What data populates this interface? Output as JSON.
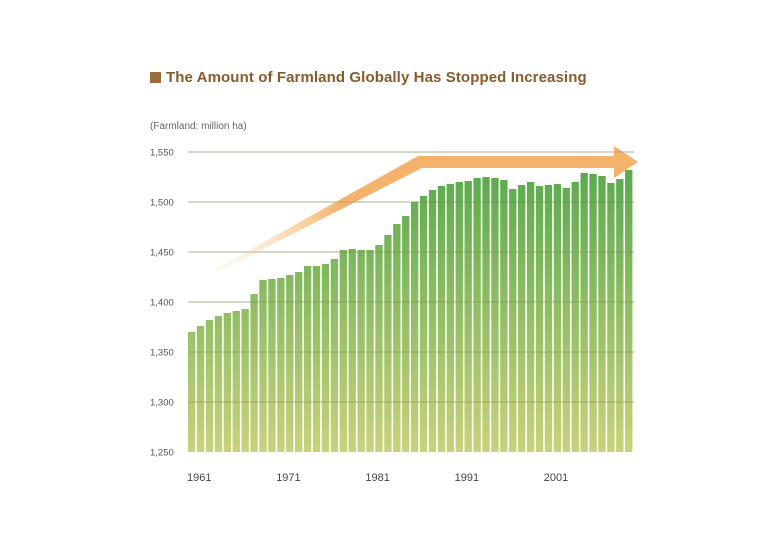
{
  "title": "The Amount of Farmland Globally Has Stopped Increasing",
  "colors": {
    "title": "#8a5a2a",
    "marker": "#9a6e3c",
    "bar_top": "#52a84a",
    "bar_bottom": "#c9d27a",
    "arrow": "#f4b26a"
  },
  "chart_data": {
    "type": "bar",
    "ylabel": "(Farmland: million ha)",
    "xlabel": "",
    "ylim": [
      1250,
      1550
    ],
    "yticks": [
      "1,250",
      "1,300",
      "1,350",
      "1,400",
      "1,450",
      "1,500",
      "1,550"
    ],
    "yticks_values": [
      1250,
      1300,
      1350,
      1400,
      1450,
      1500,
      1550
    ],
    "xticks": [
      "1961",
      "1971",
      "1981",
      "1991",
      "2001"
    ],
    "grid": true,
    "legend": "none",
    "annotation": "upward arrow flattening to horizontal",
    "categories": [
      1961,
      1962,
      1963,
      1964,
      1965,
      1966,
      1967,
      1968,
      1969,
      1970,
      1971,
      1972,
      1973,
      1974,
      1975,
      1976,
      1977,
      1978,
      1979,
      1980,
      1981,
      1982,
      1983,
      1984,
      1985,
      1986,
      1987,
      1988,
      1989,
      1990,
      1991,
      1992,
      1993,
      1994,
      1995,
      1996,
      1997,
      1998,
      1999,
      2000,
      2001,
      2002,
      2003,
      2004,
      2005,
      2006,
      2007,
      2008,
      2009,
      2010
    ],
    "values": [
      1370,
      1376,
      1382,
      1386,
      1389,
      1391,
      1393,
      1408,
      1422,
      1423,
      1424,
      1427,
      1430,
      1436,
      1436,
      1438,
      1443,
      1452,
      1453,
      1452,
      1452,
      1457,
      1467,
      1478,
      1486,
      1500,
      1506,
      1512,
      1516,
      1518,
      1520,
      1521,
      1524,
      1525,
      1524,
      1522,
      1513,
      1517,
      1520,
      1516,
      1517,
      1518,
      1514,
      1520,
      1529,
      1528,
      1526,
      1519,
      1523,
      1532
    ]
  }
}
